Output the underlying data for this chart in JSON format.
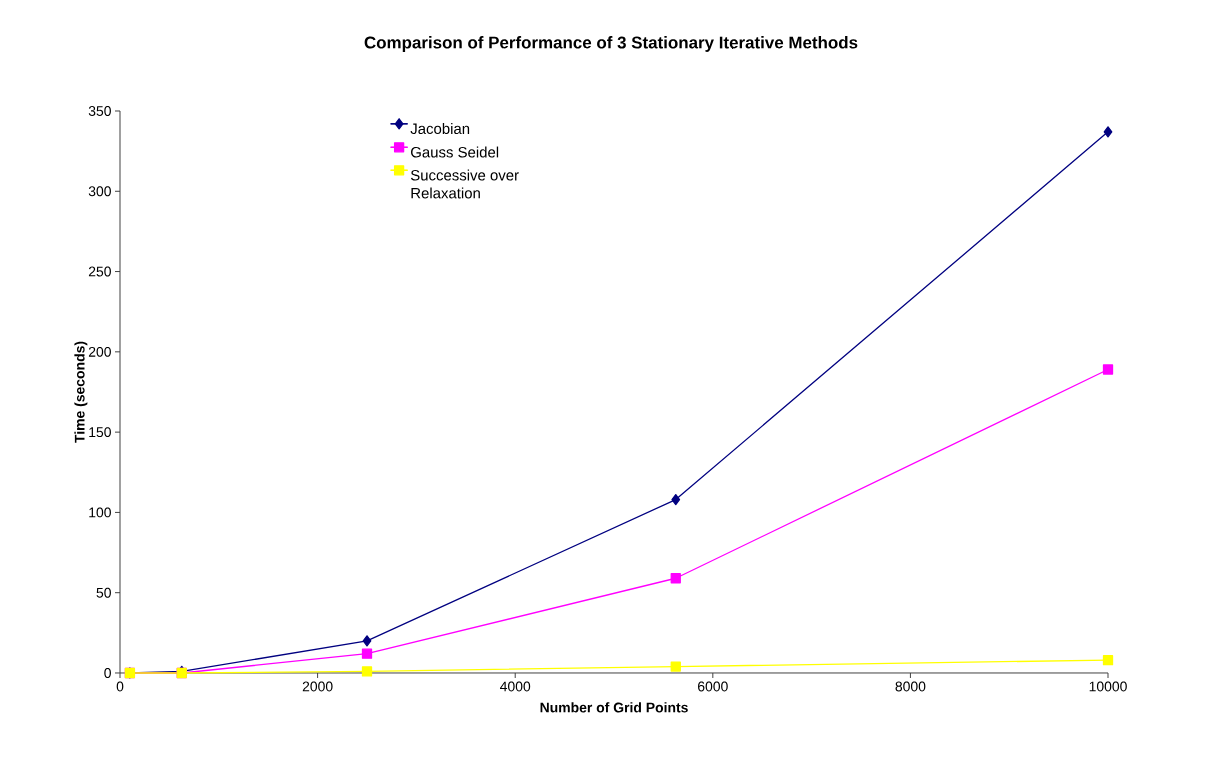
{
  "chart_data": {
    "type": "line",
    "title": "Comparison of Performance of 3 Stationary Iterative Methods",
    "xlabel": "Number of Grid Points",
    "ylabel": "Time (seconds)",
    "x": [
      100,
      625,
      2500,
      5625,
      10000
    ],
    "series": [
      {
        "name": "Jacobian",
        "color": "#000080",
        "marker": "diamond",
        "values": [
          0,
          1,
          20,
          108,
          337
        ]
      },
      {
        "name": "Gauss Seidel",
        "color": "#ff00ff",
        "marker": "square",
        "values": [
          0,
          0,
          12,
          59,
          189
        ]
      },
      {
        "name": "Successive over Relaxation",
        "color": "#ffff00",
        "marker": "square",
        "values": [
          0,
          0,
          1,
          4,
          8
        ]
      }
    ],
    "xlim": [
      0,
      10000
    ],
    "xticks": [
      0,
      2000,
      4000,
      6000,
      8000,
      10000
    ],
    "ylim": [
      0,
      350
    ],
    "yticks": [
      0,
      50,
      100,
      150,
      200,
      250,
      300,
      350
    ],
    "grid": false,
    "legend": "top",
    "line_style": "solid"
  }
}
